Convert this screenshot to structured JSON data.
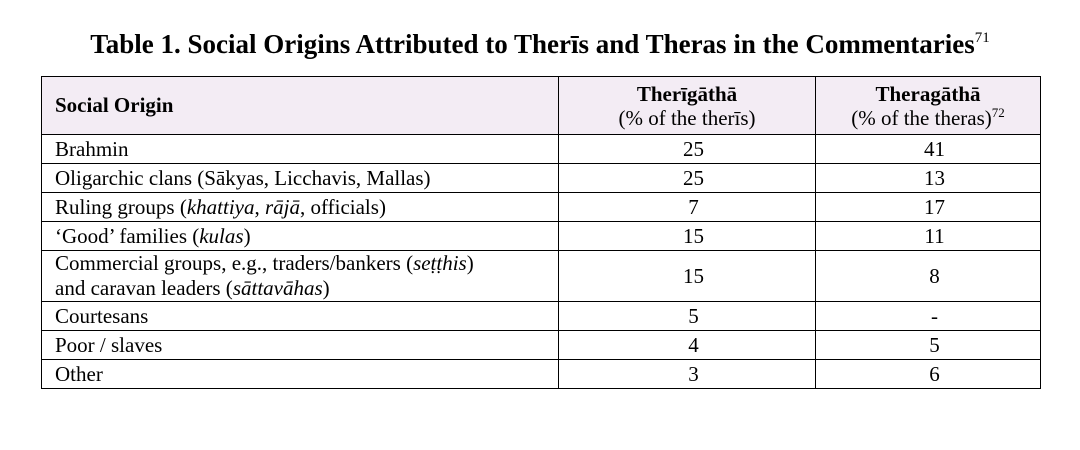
{
  "caption": {
    "text": "Table 1. Social Origins Attributed to Therīs and Theras in the Commentaries",
    "footnote": "71"
  },
  "table": {
    "headers": {
      "origin": "Social Origin",
      "therigatha_title": "Therīgāthā",
      "therigatha_sub": "(% of the therīs)",
      "theragatha_title": "Theragāthā",
      "theragatha_sub": "(% of the theras)",
      "theragatha_footnote": "72"
    },
    "rows": [
      {
        "origin": "Brahmin",
        "therigatha": "25",
        "theragatha": "41"
      },
      {
        "origin": "Oligarchic clans (Sākyas, Licchavis, Mallas)",
        "therigatha": "25",
        "theragatha": "13"
      },
      {
        "origin": "Ruling groups (khattiya, rājā, officials)",
        "therigatha": "7",
        "theragatha": "17"
      },
      {
        "origin": "‘Good’ families (kulas)",
        "therigatha": "15",
        "theragatha": "11"
      },
      {
        "origin_line1": "Commercial groups, e.g., traders/bankers (seṭṭhis)",
        "origin_line2": "and caravan leaders (sāttavāhas)",
        "therigatha": "15",
        "theragatha": "8"
      },
      {
        "origin": "Courtesans",
        "therigatha": "5",
        "theragatha": "-"
      },
      {
        "origin": "Poor / slaves",
        "therigatha": "4",
        "theragatha": "5"
      },
      {
        "origin": "Other",
        "therigatha": "3",
        "theragatha": "6"
      }
    ]
  },
  "colors": {
    "header_bg": "#f3ecf4",
    "border": "#000000",
    "text": "#000000"
  }
}
